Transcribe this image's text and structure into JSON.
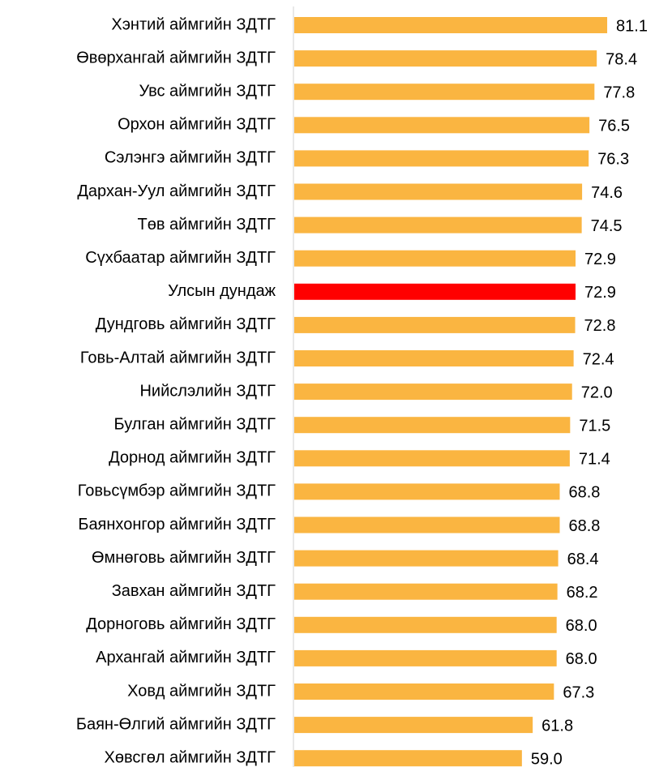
{
  "chart_data": {
    "type": "barh",
    "categories": [
      "Хэнтий аймгийн ЗДТГ",
      "Өвөрхангай аймгийн ЗДТГ",
      "Увс аймгийн ЗДТГ",
      "Орхон аймгийн ЗДТГ",
      "Сэлэнгэ аймгийн ЗДТГ",
      "Дархан-Уул аймгийн ЗДТГ",
      "Төв аймгийн ЗДТГ",
      "Сүхбаатар аймгийн ЗДТГ",
      "Улсын дундаж",
      "Дундговь аймгийн ЗДТГ",
      "Говь-Алтай аймгийн ЗДТГ",
      "Нийслэлийн ЗДТГ",
      "Булган аймгийн ЗДТГ",
      "Дорнод аймгийн ЗДТГ",
      "Говьсүмбэр аймгийн ЗДТГ",
      "Баянхонгор аймгийн ЗДТГ",
      "Өмнөговь аймгийн ЗДТГ",
      "Завхан аймгийн ЗДТГ",
      "Дорноговь аймгийн ЗДТГ",
      "Архангай аймгийн ЗДТГ",
      "Ховд аймгийн ЗДТГ",
      "Баян-Өлгий аймгийн ЗДТГ",
      "Хөвсгөл аймгийн ЗДТГ"
    ],
    "values": [
      81.1,
      78.4,
      77.8,
      76.5,
      76.3,
      74.6,
      74.5,
      72.9,
      72.9,
      72.8,
      72.4,
      72.0,
      71.5,
      71.4,
      68.8,
      68.8,
      68.4,
      68.2,
      68.0,
      68.0,
      67.3,
      61.8,
      59.0
    ],
    "value_labels": [
      "81.1",
      "78.4",
      "77.8",
      "76.5",
      "76.3",
      "74.6",
      "74.5",
      "72.9",
      "72.9",
      "72.8",
      "72.4",
      "72.0",
      "71.5",
      "71.4",
      "68.8",
      "68.8",
      "68.4",
      "68.2",
      "68.0",
      "68.0",
      "67.3",
      "61.8",
      "59.0"
    ],
    "colors": [
      "#FAB541",
      "#FAB541",
      "#FAB541",
      "#FAB541",
      "#FAB541",
      "#FAB541",
      "#FAB541",
      "#FAB541",
      "#FF0000",
      "#FAB541",
      "#FAB541",
      "#FAB541",
      "#FAB541",
      "#FAB541",
      "#FAB541",
      "#FAB541",
      "#FAB541",
      "#FAB541",
      "#FAB541",
      "#FAB541",
      "#FAB541",
      "#FAB541",
      "#FAB541"
    ]
  }
}
